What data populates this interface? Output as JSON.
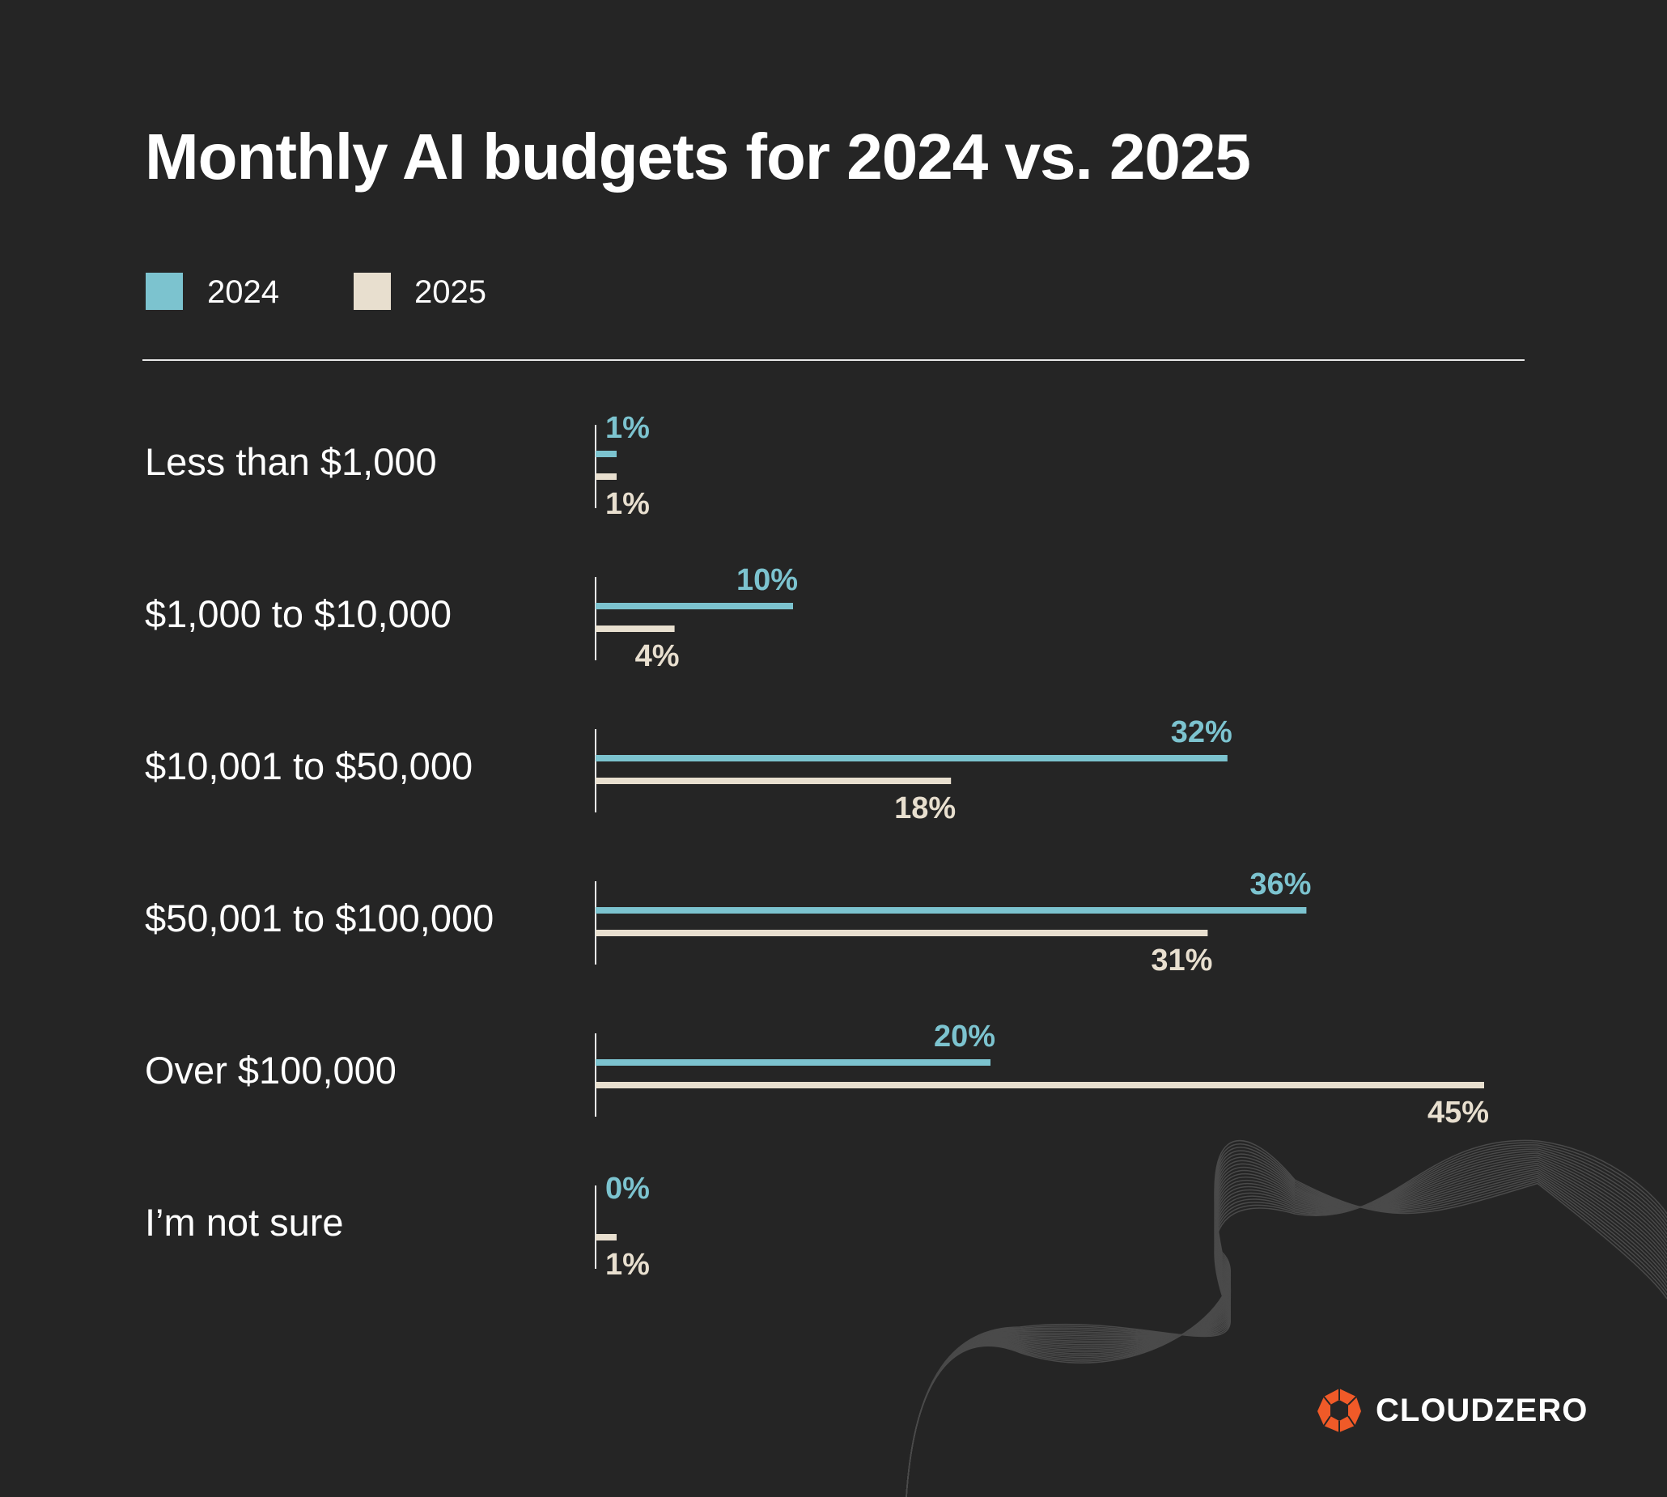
{
  "colors": {
    "background": "#252525",
    "2024": "#7cc3cf",
    "2025": "#e8dfcf",
    "brand": "#f05a28"
  },
  "brand": {
    "name": "CLOUDZERO"
  },
  "chart_data": {
    "type": "bar",
    "orientation": "horizontal",
    "title": "Monthly AI budgets for 2024 vs. 2025",
    "categories": [
      "Less than $1,000",
      "$1,000 to $10,000",
      "$10,001 to $50,000",
      "$50,001 to $100,000",
      "Over $100,000",
      "I’m not sure"
    ],
    "series": [
      {
        "name": "2024",
        "values": [
          1,
          10,
          32,
          36,
          20,
          0
        ],
        "labels": [
          "1%",
          "10%",
          "32%",
          "36%",
          "20%",
          "0%"
        ]
      },
      {
        "name": "2025",
        "values": [
          1,
          4,
          18,
          31,
          45,
          1
        ],
        "labels": [
          "1%",
          "4%",
          "18%",
          "31%",
          "45%",
          "1%"
        ]
      }
    ],
    "legend": "top-left",
    "grid": false,
    "unit": "%"
  }
}
